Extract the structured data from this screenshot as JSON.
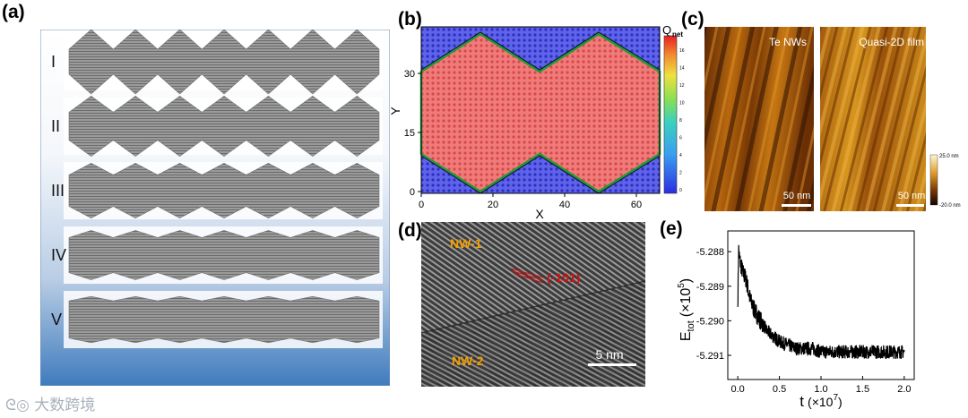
{
  "panels": {
    "a": {
      "label": "(a)",
      "rows": [
        "I",
        "II",
        "III",
        "IV",
        "V"
      ],
      "colors": {
        "bg_top": "#ffffff",
        "bg_bottom": "#3f7bbd",
        "strip": "#8a8a8a"
      }
    },
    "b": {
      "label": "(b)",
      "xlabel": "X",
      "ylabel": "Y",
      "xticks": [
        "0",
        "20",
        "40",
        "60"
      ],
      "yticks": [
        "0",
        "15",
        "30"
      ],
      "colorbar_title": "Q",
      "colorbar_subscript": "net",
      "colorbar_ticks": [
        "16",
        "14",
        "12",
        "10",
        "8",
        "6",
        "4",
        "2",
        "0"
      ],
      "colors": {
        "blue": "#3b3fd8",
        "red": "#ee5a5a",
        "green": "#1e9b3a"
      }
    },
    "c": {
      "label": "(c)",
      "left_title": "Te NWs",
      "right_title": "Quasi-2D film",
      "scalebar_left": "50 nm",
      "scalebar_right": "50 nm",
      "colorbar_max": "25.0 nm",
      "colorbar_min": "-20.0 nm"
    },
    "d": {
      "label": "(d)",
      "nw1": "NW-1",
      "nw2": "NW-2",
      "direction": "(-101)",
      "scalebar": "5 nm",
      "colors": {
        "annotation": "#f2a000",
        "direction": "#d01010"
      }
    },
    "e": {
      "label": "(e)",
      "ylabel_main": "E",
      "ylabel_sub": "tot",
      "ylabel_unit": "(×10",
      "ylabel_exp": "5",
      "ylabel_close": ")",
      "xlabel_main": "t",
      "xlabel_unit": "(×10",
      "xlabel_exp": "7",
      "xlabel_close": ")",
      "xticks": [
        "0.0",
        "0.5",
        "1.0",
        "1.5",
        "2.0"
      ],
      "yticks": [
        "-5.288",
        "-5.289",
        "-5.290",
        "-5.291"
      ]
    }
  },
  "chart_data": {
    "type": "line",
    "title": "",
    "xlabel": "t (×10^7)",
    "ylabel": "E_tot (×10^5)",
    "xlim": [
      -0.12,
      2.12
    ],
    "ylim": [
      -5.2917,
      -5.2874
    ],
    "x": [
      0.0,
      0.01,
      0.02,
      0.04,
      0.06,
      0.1,
      0.15,
      0.2,
      0.25,
      0.3,
      0.35,
      0.4,
      0.5,
      0.6,
      0.7,
      0.8,
      0.9,
      1.0,
      1.1,
      1.2,
      1.3,
      1.4,
      1.5,
      1.6,
      1.7,
      1.8,
      1.9,
      2.0
    ],
    "values": [
      -5.2896,
      -5.2879,
      -5.2882,
      -5.2884,
      -5.2886,
      -5.2888,
      -5.2894,
      -5.2897,
      -5.2899,
      -5.2901,
      -5.2903,
      -5.2904,
      -5.2906,
      -5.2907,
      -5.2908,
      -5.2908,
      -5.2908,
      -5.2909,
      -5.2909,
      -5.2909,
      -5.2909,
      -5.2909,
      -5.2909,
      -5.2909,
      -5.2909,
      -5.2909,
      -5.2909,
      -5.2909
    ]
  },
  "watermark": "大数跨境"
}
